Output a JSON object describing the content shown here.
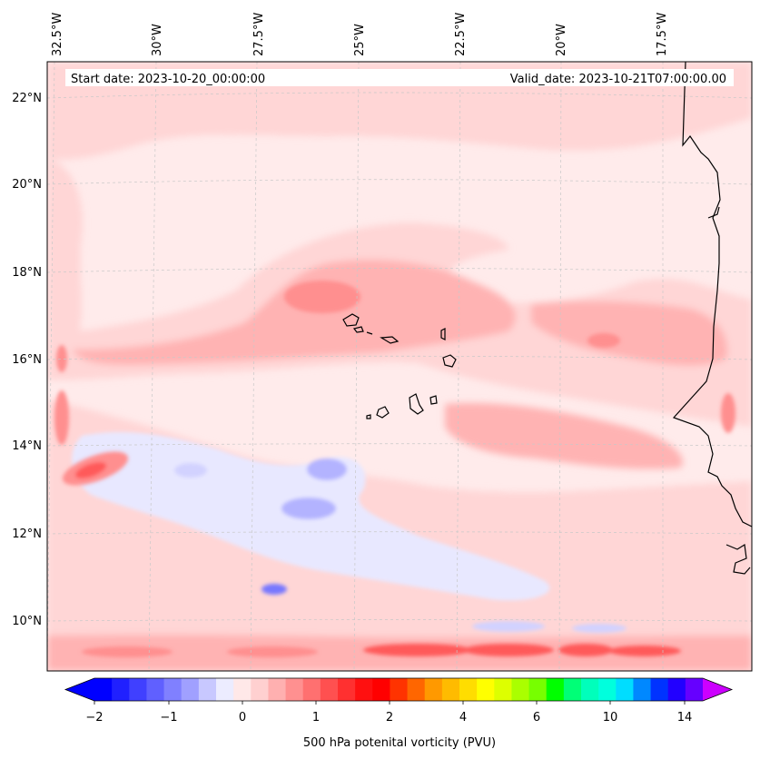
{
  "map": {
    "start_date_text": "Start date: 2023-10-20_00:00:00",
    "valid_date_text": "Valid_date: 2023-10-21T07:00:00.00",
    "lon_ticks": [
      "32.5°W",
      "30°W",
      "27.5°W",
      "25°W",
      "22.5°W",
      "20°W",
      "17.5°W"
    ],
    "lat_ticks": [
      "22°N",
      "20°N",
      "18°N",
      "16°N",
      "14°N",
      "12°N",
      "10°N"
    ],
    "colors": {
      "background_light": "#ffebeb",
      "pink_1": "#ffd6d6",
      "pink_2": "#ffb3b3",
      "pink_3": "#ff8f8f",
      "red_core": "#ff5a5a",
      "blue_light": "#e8e8ff",
      "blue_mid": "#b3b3ff",
      "blue_strong": "#7777ff",
      "coast": "#000000",
      "grid": "#c8c8c8"
    }
  },
  "colorbar": {
    "label": "500 hPa potenital vorticity (PVU)",
    "tick_labels": [
      "−2",
      "−1",
      "0",
      "1",
      "2",
      "4",
      "6",
      "10",
      "14"
    ],
    "colors": [
      "#0000ff",
      "#2020ff",
      "#4040ff",
      "#6060ff",
      "#8080ff",
      "#a0a0ff",
      "#c8c8ff",
      "#ececff",
      "#ffe8e8",
      "#ffd0d0",
      "#ffb0b0",
      "#ff9090",
      "#ff7070",
      "#ff5050",
      "#ff3030",
      "#ff1010",
      "#ff0000",
      "#ff3300",
      "#ff6600",
      "#ff9900",
      "#ffbb00",
      "#ffdd00",
      "#ffff00",
      "#ddff00",
      "#aaff00",
      "#77ff00",
      "#00ff00",
      "#00ff77",
      "#00ffbb",
      "#00ffdd",
      "#00ddff",
      "#0088ff",
      "#0033ff",
      "#2200ff",
      "#6600ff"
    ],
    "extend_min_color": "#0000ff",
    "extend_max_color": "#cc00ff"
  }
}
